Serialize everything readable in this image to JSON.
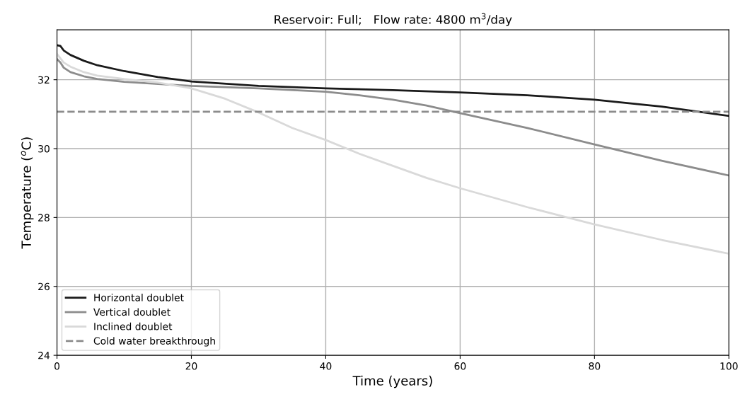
{
  "chart_data": {
    "type": "line",
    "title": "Reservoir: Full;   Flow rate: 4800 m$^{3}$/day",
    "xlabel": "Time (years)",
    "ylabel": "Temperature ($^{o}$C)",
    "series": [
      {
        "name": "Horizontal doublet",
        "color": "#1a1a1a",
        "x": [
          0,
          0.5,
          1,
          2,
          4,
          6,
          10,
          15,
          20,
          30,
          40,
          50,
          60,
          70,
          80,
          90,
          100
        ],
        "values": [
          33.0,
          32.98,
          32.85,
          32.72,
          32.55,
          32.42,
          32.25,
          32.08,
          31.95,
          31.82,
          31.75,
          31.7,
          31.63,
          31.55,
          31.42,
          31.22,
          30.95
        ]
      },
      {
        "name": "Vertical doublet",
        "color": "#8c8c8c",
        "x": [
          0,
          0.5,
          1,
          2,
          4,
          6,
          10,
          20,
          30,
          40,
          45,
          50,
          55,
          60,
          70,
          80,
          90,
          100
        ],
        "values": [
          32.6,
          32.5,
          32.35,
          32.22,
          32.1,
          32.02,
          31.94,
          31.82,
          31.75,
          31.65,
          31.55,
          31.42,
          31.25,
          31.03,
          30.6,
          30.12,
          29.65,
          29.22
        ]
      },
      {
        "name": "Inclined doublet",
        "color": "#d9d9d9",
        "x": [
          0,
          1,
          2,
          4,
          6,
          10,
          15,
          20,
          25,
          30,
          35,
          40,
          45,
          50,
          55,
          60,
          70,
          80,
          90,
          100
        ],
        "values": [
          32.75,
          32.5,
          32.38,
          32.22,
          32.12,
          32.02,
          31.92,
          31.75,
          31.45,
          31.05,
          30.6,
          30.25,
          29.85,
          29.5,
          29.15,
          28.85,
          28.3,
          27.8,
          27.35,
          26.95
        ]
      }
    ],
    "ref_lines": [
      {
        "axis": "y",
        "value": 31.07,
        "label": "Cold water breakthrough",
        "color": "#8c8c8c",
        "line_style": "dashed"
      }
    ],
    "xlim": [
      0,
      100
    ],
    "xticks": [
      0,
      20,
      40,
      60,
      80,
      100
    ],
    "ylim": [
      24,
      33.45
    ],
    "yticks": [
      24,
      26,
      28,
      30,
      32
    ],
    "grid": true,
    "legend": "bottom left"
  }
}
